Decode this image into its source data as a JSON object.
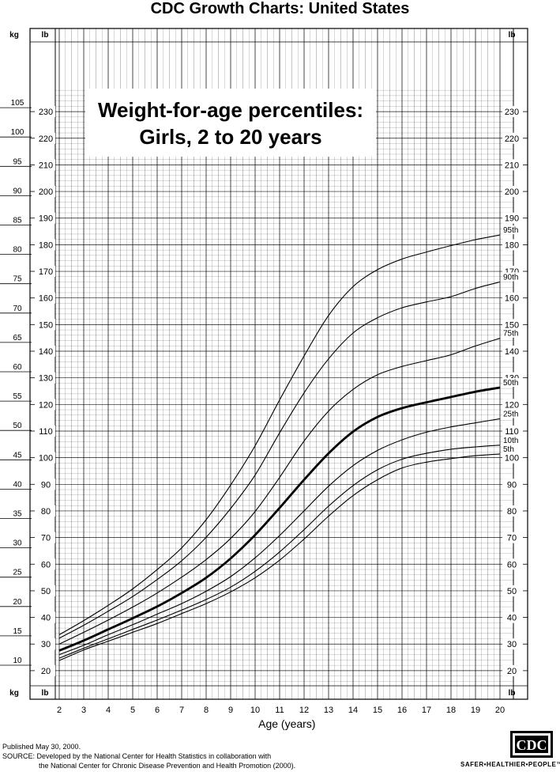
{
  "page": {
    "title": "CDC Growth Charts: United States",
    "footer_published": "Published May 30, 2000.",
    "footer_source_line1": "SOURCE: Developed by the National Center for Health Statistics in collaboration with",
    "footer_source_line2": "the National Center for Chronic Disease Prevention and Health Promotion (2000).",
    "logo_text": "CDC",
    "tagline": "SAFER•HEALTHIER•PEOPLE™"
  },
  "chart_data": {
    "type": "line",
    "title_line1": "Weight-for-age percentiles:",
    "title_line2": "Girls, 2 to 20 years",
    "xlabel": "Age (years)",
    "left_unit": "kg",
    "right_unit": "lb",
    "lb_label": "lb",
    "xlim": [
      1.5,
      21
    ],
    "ylim_kg": [
      7.5,
      108
    ],
    "x_ticks": [
      2,
      3,
      4,
      5,
      6,
      7,
      8,
      9,
      10,
      11,
      12,
      13,
      14,
      15,
      16,
      17,
      18,
      19,
      20
    ],
    "kg_ticks": [
      10,
      15,
      20,
      25,
      30,
      35,
      40,
      45,
      50,
      55,
      60,
      65,
      70,
      75,
      80,
      85,
      90,
      95,
      100,
      105
    ],
    "lb_ticks": [
      20,
      30,
      40,
      50,
      60,
      70,
      80,
      90,
      100,
      110,
      120,
      130,
      140,
      150,
      160,
      170,
      180,
      190,
      200,
      210,
      220,
      230
    ],
    "x": [
      2,
      3,
      4,
      5,
      6,
      7,
      8,
      9,
      10,
      11,
      12,
      13,
      14,
      15,
      16,
      17,
      18,
      19,
      20
    ],
    "series": [
      {
        "name": "95th",
        "values": [
          15.2,
          17.6,
          20.2,
          23.0,
          26.3,
          30.0,
          34.8,
          40.7,
          47.4,
          55.2,
          62.7,
          69.6,
          74.5,
          77.4,
          79.2,
          80.4,
          81.5,
          82.5,
          83.3
        ]
      },
      {
        "name": "90th",
        "values": [
          14.6,
          16.8,
          19.2,
          21.7,
          24.6,
          27.8,
          31.8,
          36.7,
          42.4,
          49.6,
          56.4,
          62.2,
          66.6,
          69.2,
          70.9,
          71.9,
          72.8,
          74.2,
          75.3
        ]
      },
      {
        "name": "75th",
        "values": [
          13.6,
          15.6,
          17.7,
          19.9,
          22.3,
          25.0,
          28.0,
          31.6,
          36.2,
          42.0,
          48.2,
          53.3,
          57.0,
          59.5,
          60.9,
          61.9,
          62.9,
          64.4,
          65.7
        ]
      },
      {
        "name": "50th",
        "values": [
          12.5,
          14.2,
          16.1,
          18.0,
          20.0,
          22.3,
          24.9,
          28.2,
          32.2,
          36.8,
          41.6,
          46.1,
          49.8,
          52.3,
          53.8,
          54.8,
          55.7,
          56.6,
          57.3
        ]
      },
      {
        "name": "25th",
        "values": [
          11.8,
          13.4,
          15.2,
          16.9,
          18.7,
          20.5,
          22.6,
          25.1,
          28.3,
          32.1,
          36.3,
          40.5,
          44.0,
          46.6,
          48.4,
          49.7,
          50.6,
          51.3,
          52.0
        ]
      },
      {
        "name": "10th",
        "values": [
          11.2,
          12.9,
          14.5,
          16.1,
          17.7,
          19.4,
          21.2,
          23.3,
          26.0,
          29.3,
          33.1,
          37.1,
          40.6,
          43.3,
          45.1,
          46.1,
          46.8,
          47.2,
          47.5
        ]
      },
      {
        "name": "5th",
        "values": [
          10.8,
          12.6,
          14.1,
          15.6,
          17.1,
          18.8,
          20.5,
          22.5,
          24.9,
          27.9,
          31.5,
          35.4,
          38.9,
          41.6,
          43.6,
          44.6,
          45.2,
          45.7,
          46.0
        ]
      }
    ]
  }
}
